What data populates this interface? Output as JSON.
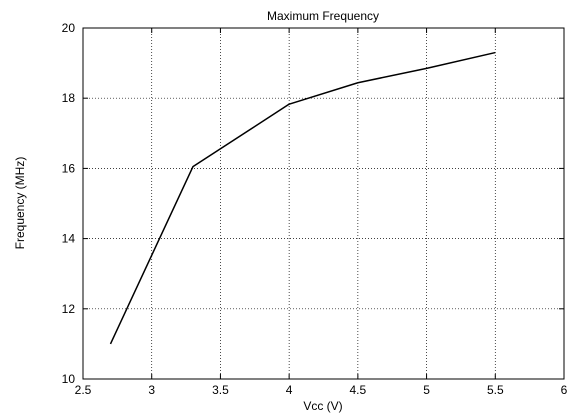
{
  "chart_data": {
    "type": "line",
    "title": "Maximum Frequency",
    "xlabel": "Vcc (V)",
    "ylabel": "Frequency (MHz)",
    "xlim": [
      2.5,
      6
    ],
    "ylim": [
      10,
      20
    ],
    "xticks": [
      2.5,
      3,
      3.5,
      4,
      4.5,
      5,
      5.5,
      6
    ],
    "xtick_labels": [
      "2.5",
      "3",
      "3.5",
      "4",
      "4.5",
      "5",
      "5.5",
      "6"
    ],
    "yticks": [
      10,
      12,
      14,
      16,
      18,
      20
    ],
    "ytick_labels": [
      "10",
      "12",
      "14",
      "16",
      "18",
      "20"
    ],
    "grid": true,
    "series": [
      {
        "x": [
          2.7,
          3.3,
          4.0,
          4.5,
          5.0,
          5.5
        ],
        "y": [
          11.0,
          16.05,
          17.83,
          18.44,
          18.85,
          19.3
        ],
        "color": "#000000"
      }
    ]
  }
}
